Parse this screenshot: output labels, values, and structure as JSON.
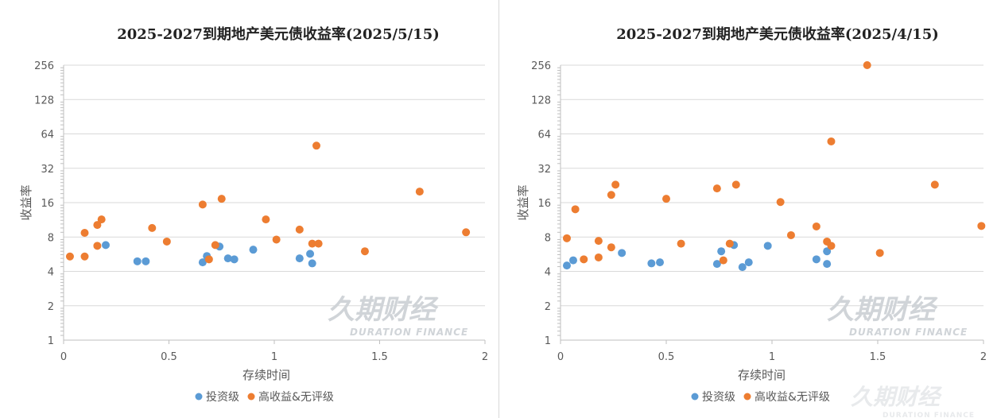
{
  "watermark": {
    "cn": "久期财经",
    "en": "DURATION FINANCE"
  },
  "colors": {
    "investment_grade": "#5B9BD5",
    "high_yield": "#ED7D31",
    "grid": "#d9d9d9"
  },
  "chart_data": [
    {
      "type": "scatter",
      "title": "2025-2027到期地产美元债收益率(2025/5/15)",
      "xlabel": "存续时间",
      "ylabel": "收益率",
      "xlim": [
        0,
        2
      ],
      "ylim": [
        1,
        256
      ],
      "yscale": "log2",
      "x_ticks": [
        "0",
        "0.5",
        "1",
        "1.5",
        "2"
      ],
      "y_ticks": [
        "1",
        "2",
        "4",
        "8",
        "16",
        "32",
        "64",
        "128",
        "256"
      ],
      "grid": true,
      "legend": "bottom",
      "series": [
        {
          "name": "投资级",
          "color": "#5B9BD5",
          "points": [
            [
              0.2,
              6.8
            ],
            [
              0.35,
              4.9
            ],
            [
              0.39,
              4.9
            ],
            [
              0.66,
              4.8
            ],
            [
              0.68,
              5.45
            ],
            [
              0.74,
              6.6
            ],
            [
              0.78,
              5.2
            ],
            [
              0.81,
              5.1
            ],
            [
              0.9,
              6.2
            ],
            [
              1.12,
              5.2
            ],
            [
              1.17,
              5.7
            ],
            [
              1.18,
              4.7
            ]
          ]
        },
        {
          "name": "高收益&无评级",
          "color": "#ED7D31",
          "points": [
            [
              0.03,
              5.4
            ],
            [
              0.1,
              8.7
            ],
            [
              0.1,
              5.4
            ],
            [
              0.16,
              10.2
            ],
            [
              0.16,
              6.7
            ],
            [
              0.18,
              11.4
            ],
            [
              0.42,
              9.6
            ],
            [
              0.49,
              7.3
            ],
            [
              0.66,
              15.4
            ],
            [
              0.69,
              5.1
            ],
            [
              0.72,
              6.8
            ],
            [
              0.75,
              17.3
            ],
            [
              0.96,
              11.4
            ],
            [
              1.01,
              7.6
            ],
            [
              1.12,
              9.3
            ],
            [
              1.2,
              50.5
            ],
            [
              1.18,
              7.0
            ],
            [
              1.21,
              7.0
            ],
            [
              1.43,
              6.0
            ],
            [
              1.69,
              20
            ],
            [
              1.91,
              8.8
            ]
          ]
        }
      ]
    },
    {
      "type": "scatter",
      "title": "2025-2027到期地产美元债收益率(2025/4/15)",
      "xlabel": "存续时间",
      "ylabel": "收益率",
      "xlim": [
        0,
        2
      ],
      "ylim": [
        1,
        256
      ],
      "yscale": "log2",
      "x_ticks": [
        "0",
        "0.5",
        "1",
        "1.5",
        "2"
      ],
      "y_ticks": [
        "1",
        "2",
        "4",
        "8",
        "16",
        "32",
        "64",
        "128",
        "256"
      ],
      "grid": true,
      "legend": "bottom",
      "series": [
        {
          "name": "投资级",
          "color": "#5B9BD5",
          "points": [
            [
              0.03,
              4.5
            ],
            [
              0.06,
              5.0
            ],
            [
              0.29,
              5.8
            ],
            [
              0.43,
              4.7
            ],
            [
              0.47,
              4.8
            ],
            [
              0.74,
              4.65
            ],
            [
              0.76,
              6.0
            ],
            [
              0.82,
              6.8
            ],
            [
              0.86,
              4.36
            ],
            [
              0.89,
              4.8
            ],
            [
              0.98,
              6.7
            ],
            [
              1.21,
              5.1
            ],
            [
              1.26,
              6.0
            ],
            [
              1.26,
              4.65
            ]
          ]
        },
        {
          "name": "高收益&无评级",
          "color": "#ED7D31",
          "points": [
            [
              0.03,
              7.8
            ],
            [
              0.07,
              14
            ],
            [
              0.11,
              5.1
            ],
            [
              0.18,
              7.4
            ],
            [
              0.18,
              5.3
            ],
            [
              0.24,
              6.5
            ],
            [
              0.24,
              18.7
            ],
            [
              0.26,
              23
            ],
            [
              0.5,
              17.3
            ],
            [
              0.57,
              7.0
            ],
            [
              0.74,
              21.3
            ],
            [
              0.77,
              5.0
            ],
            [
              0.8,
              7.0
            ],
            [
              0.83,
              23
            ],
            [
              1.04,
              16.2
            ],
            [
              1.09,
              8.3
            ],
            [
              1.21,
              9.9
            ],
            [
              1.26,
              7.3
            ],
            [
              1.28,
              6.7
            ],
            [
              1.28,
              55
            ],
            [
              1.45,
              256
            ],
            [
              1.51,
              5.8
            ],
            [
              1.77,
              23
            ],
            [
              1.99,
              10
            ]
          ]
        }
      ]
    }
  ]
}
